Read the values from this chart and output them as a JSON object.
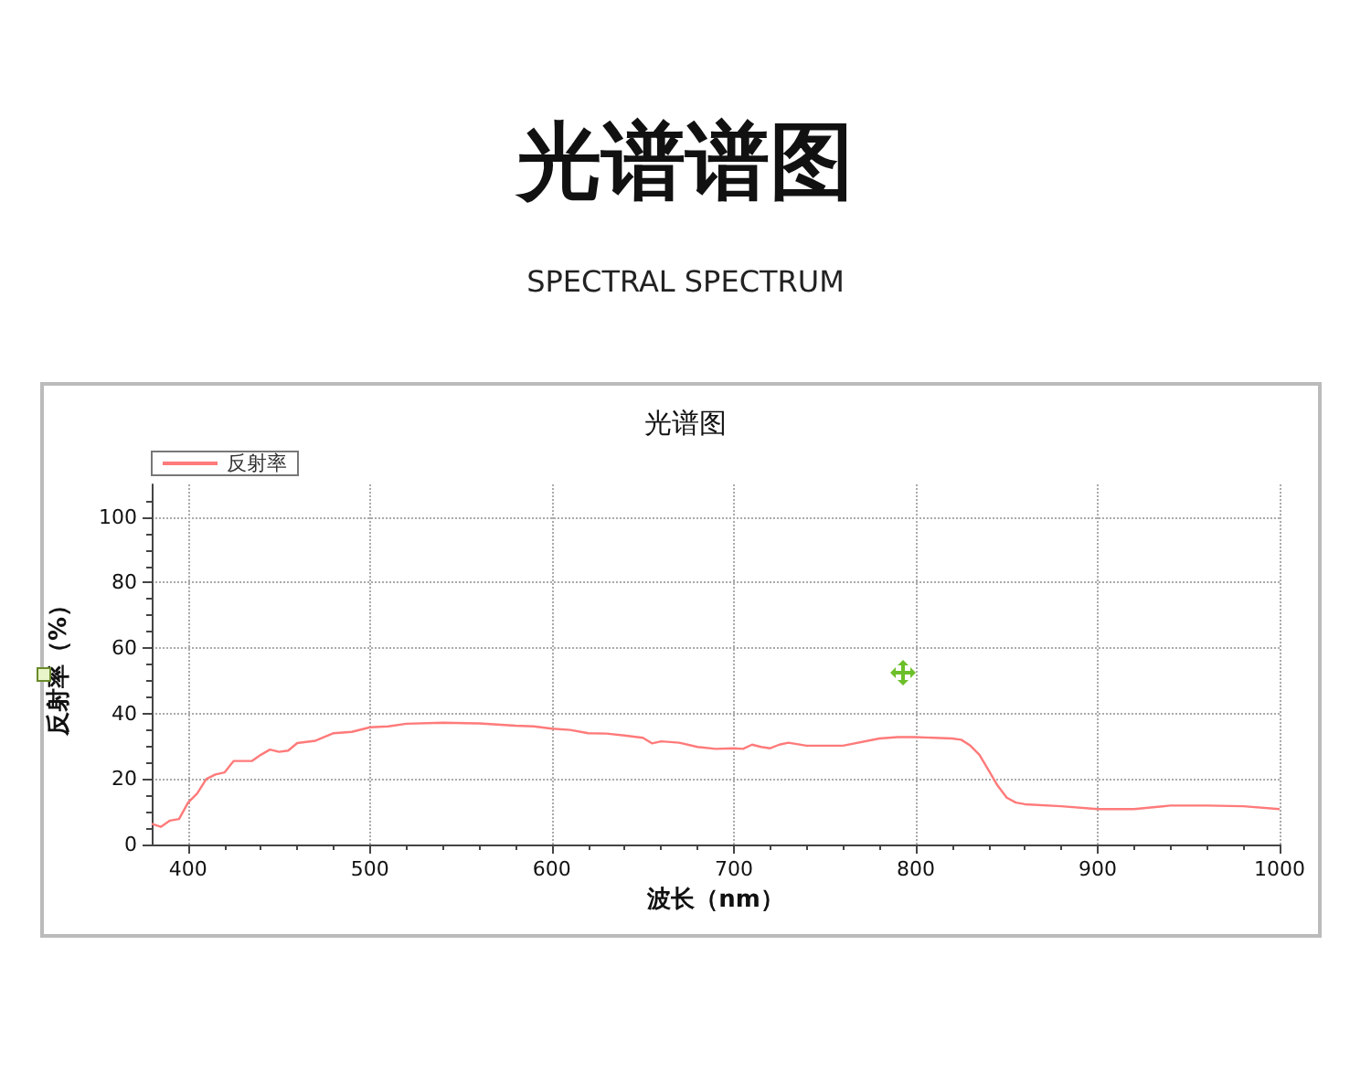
{
  "chart_data": {
    "type": "line",
    "title": "光谱谱图",
    "subtitle": "SPECTRAL SPECTRUM",
    "annotations": [
      "光谱图"
    ],
    "xlabel": "波长（nm）",
    "ylabel": "反射率（%）",
    "xlim": [
      380,
      1000
    ],
    "xticks": [
      400,
      500,
      600,
      700,
      800,
      900,
      1000
    ],
    "ylim": [
      0,
      110
    ],
    "yticks": [
      0,
      20,
      40,
      60,
      80,
      100
    ],
    "grid": true,
    "legend": "top left",
    "marker": "none",
    "line_style": "solid",
    "series": [
      {
        "name": "反射率",
        "color": "#ff7a7a",
        "x": [
          380,
          385,
          390,
          395,
          400,
          405,
          410,
          415,
          420,
          425,
          435,
          440,
          445,
          450,
          455,
          460,
          470,
          480,
          490,
          500,
          510,
          520,
          540,
          560,
          580,
          590,
          600,
          610,
          620,
          630,
          640,
          650,
          655,
          660,
          670,
          680,
          690,
          700,
          705,
          710,
          715,
          720,
          725,
          730,
          740,
          760,
          780,
          790,
          800,
          820,
          825,
          830,
          835,
          840,
          845,
          850,
          855,
          860,
          880,
          900,
          920,
          940,
          960,
          980,
          1000
        ],
        "values": [
          6.3,
          5.4,
          7.3,
          7.8,
          12.8,
          15.6,
          20,
          21.4,
          22,
          25.5,
          25.5,
          27.4,
          29,
          28.3,
          28.7,
          31,
          31.7,
          34,
          34.4,
          35.8,
          36.1,
          36.9,
          37.2,
          37,
          36.3,
          36.1,
          35.4,
          35,
          34,
          33.9,
          33.3,
          32.6,
          30.9,
          31.5,
          31.1,
          29.8,
          29.2,
          29.4,
          29.2,
          30.5,
          29.8,
          29.4,
          30.5,
          31.1,
          30.2,
          30.2,
          32.4,
          32.8,
          32.8,
          32.4,
          32,
          30.2,
          27.4,
          22.7,
          18,
          14.3,
          12.8,
          12.3,
          11.7,
          10.8,
          10.8,
          11.9,
          11.9,
          11.7,
          10.8
        ]
      }
    ]
  }
}
